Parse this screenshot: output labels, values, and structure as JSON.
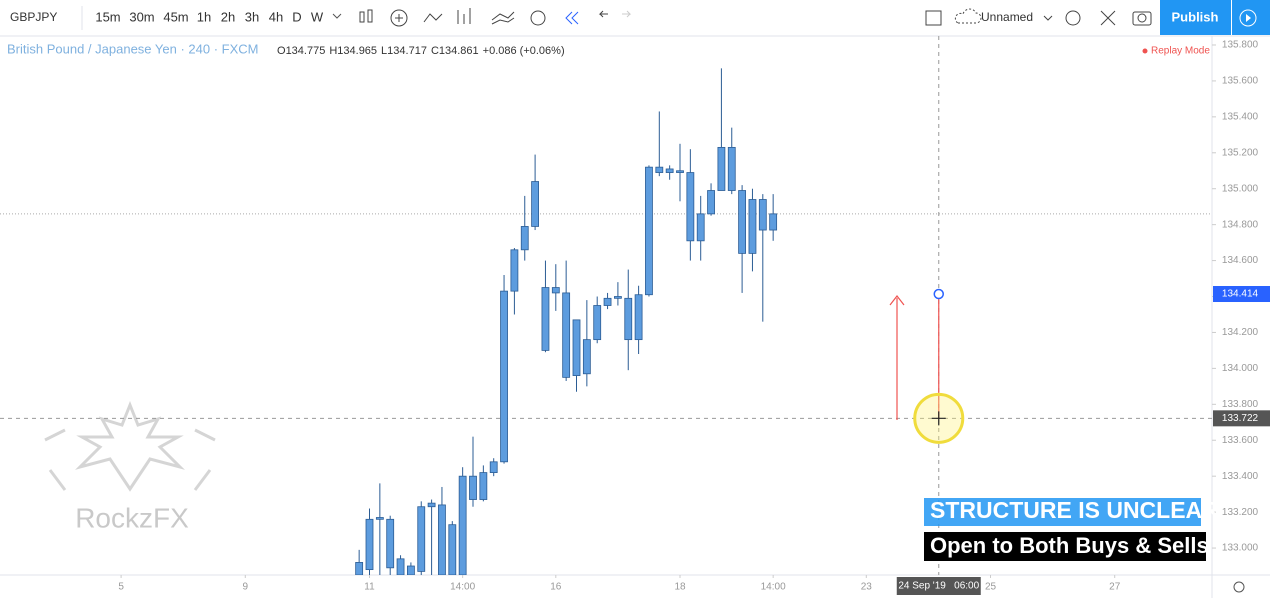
{
  "toolbar": {
    "symbol": "GBPJPY",
    "intervals": [
      "15m",
      "30m",
      "45m",
      "1h",
      "2h",
      "3h",
      "4h",
      "D",
      "W"
    ],
    "layout_name": "Unnamed",
    "publish": "Publish"
  },
  "legend": {
    "title": "British Pound / Japanese Yen · 240 · FXCM",
    "open_label": "O",
    "open": "134.775",
    "high_label": "H",
    "high": "134.965",
    "low_label": "L",
    "low": "134.717",
    "close_label": "C",
    "close": "134.861",
    "change": "+0.086 (+0.06%)",
    "replay": "Replay Mode"
  },
  "watermark": "RockzFX",
  "banners": [
    "STRUCTURE IS UNCLEAR",
    "Open to Both Buys & Sells"
  ],
  "chart_data": {
    "type": "candlestick",
    "color": "#5d9cde",
    "wick_color": "#2b5c94",
    "open": [
      132.85,
      132.88,
      133.16,
      133.16,
      132.94,
      132.9,
      132.87,
      133.23,
      133.24,
      132.85,
      132.85,
      133.4,
      133.27,
      133.42,
      133.48,
      134.43,
      134.66,
      134.79,
      134.45,
      134.45,
      134.42,
      134.27,
      133.97,
      134.16,
      134.35,
      134.39,
      134.39,
      134.16,
      134.41,
      135.12,
      135.09,
      135.1,
      135.09,
      134.71,
      134.86,
      134.99,
      135.23,
      134.99,
      134.64,
      134.94,
      134.77
    ],
    "high": [
      132.99,
      133.22,
      133.36,
      133.18,
      132.96,
      132.92,
      133.26,
      133.27,
      133.34,
      133.15,
      133.45,
      133.62,
      133.46,
      133.5,
      134.52,
      134.67,
      134.96,
      135.19,
      134.6,
      134.58,
      134.6,
      134.27,
      134.38,
      134.4,
      134.42,
      134.48,
      134.55,
      134.46,
      135.13,
      135.43,
      135.13,
      135.25,
      135.22,
      134.96,
      135.03,
      135.67,
      135.34,
      135.02,
      135.0,
      134.97,
      134.97
    ],
    "low": [
      132.8,
      132.8,
      132.8,
      132.8,
      132.8,
      132.8,
      132.8,
      132.82,
      132.8,
      132.8,
      132.8,
      133.23,
      133.26,
      133.4,
      133.47,
      134.3,
      134.6,
      134.77,
      134.09,
      134.32,
      133.93,
      133.87,
      133.9,
      134.14,
      134.33,
      134.35,
      133.99,
      134.08,
      134.4,
      135.07,
      135.05,
      134.93,
      134.6,
      134.6,
      134.85,
      134.99,
      134.97,
      134.42,
      134.54,
      134.26,
      134.71
    ],
    "close": [
      132.92,
      133.16,
      133.17,
      132.89,
      132.85,
      132.85,
      133.23,
      133.25,
      132.85,
      133.13,
      133.4,
      133.27,
      133.42,
      133.48,
      134.43,
      134.66,
      134.79,
      135.04,
      134.1,
      134.42,
      133.95,
      133.96,
      134.16,
      134.35,
      134.39,
      134.4,
      134.16,
      134.41,
      135.12,
      135.09,
      135.11,
      135.09,
      134.71,
      134.86,
      134.99,
      135.23,
      134.99,
      134.64,
      134.94,
      134.77,
      134.86
    ],
    "xlim": [
      -34.7,
      82.4
    ],
    "xticks": [
      {
        "value": -23,
        "label": "5"
      },
      {
        "value": -11,
        "label": "9"
      },
      {
        "value": 1,
        "label": "11"
      },
      {
        "value": 10,
        "label": "14:00"
      },
      {
        "value": 19,
        "label": "16"
      },
      {
        "value": 31,
        "label": "18"
      },
      {
        "value": 40,
        "label": "14:00"
      },
      {
        "value": 49,
        "label": "23"
      },
      {
        "value": 61,
        "label": "25"
      },
      {
        "value": 73,
        "label": "27"
      }
    ],
    "ylim": [
      132.85,
      135.85
    ],
    "yticks": [
      {
        "value": 133,
        "label": "133.000"
      },
      {
        "value": 133.2,
        "label": "133.200"
      },
      {
        "value": 133.4,
        "label": "133.400"
      },
      {
        "value": 133.6,
        "label": "133.600"
      },
      {
        "value": 133.8,
        "label": "133.800"
      },
      {
        "value": 134,
        "label": "134.000"
      },
      {
        "value": 134.2,
        "label": "134.200"
      },
      {
        "value": 134.4,
        "label": "134.400"
      },
      {
        "value": 134.6,
        "label": "134.600"
      },
      {
        "value": 134.8,
        "label": "134.800"
      },
      {
        "value": 135,
        "label": "135.000"
      },
      {
        "value": 135.2,
        "label": "135.200"
      },
      {
        "value": 135.4,
        "label": "135.400"
      },
      {
        "value": 135.6,
        "label": "135.600"
      },
      {
        "value": 135.8,
        "label": "135.800"
      }
    ],
    "marker": {
      "x": 56,
      "y": 134.414
    },
    "crosshair": {
      "x": 56,
      "y": 133.722,
      "label": "24 Sep '19   06:00"
    }
  }
}
